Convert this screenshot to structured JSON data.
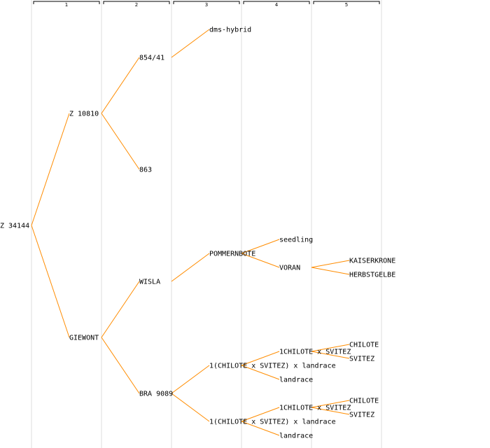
{
  "colors": {
    "edge": "#FF8C00",
    "column_line": "#dcdcdc",
    "text": "#000000"
  },
  "generations": [
    "1",
    "2",
    "3",
    "4",
    "5"
  ],
  "tree": {
    "label": "Z 34144",
    "children": [
      {
        "label": "Z 10810",
        "children": [
          {
            "label": "854/41",
            "children": [
              {
                "label": "dms-hybrid"
              }
            ]
          },
          {
            "label": "863"
          }
        ]
      },
      {
        "label": "GIEWONT",
        "children": [
          {
            "label": "WISLA",
            "children": [
              {
                "label": "POMMERNBOTE",
                "children": [
                  {
                    "label": "seedling"
                  },
                  {
                    "label": "VORAN",
                    "children": [
                      {
                        "label": "KAISERKRONE"
                      },
                      {
                        "label": "HERBSTGELBE"
                      }
                    ]
                  }
                ]
              }
            ]
          },
          {
            "label": "BRA 9089",
            "children": [
              {
                "label": "1(CHILOTE x SVITEZ) x landrace",
                "children": [
                  {
                    "label": "1CHILOTE x SVITEZ",
                    "children": [
                      {
                        "label": "CHILOTE"
                      },
                      {
                        "label": "SVITEZ"
                      }
                    ]
                  },
                  {
                    "label": "landrace"
                  }
                ]
              },
              {
                "label": "1(CHILOTE x SVITEZ) x landrace",
                "children": [
                  {
                    "label": "1CHILOTE x SVITEZ",
                    "children": [
                      {
                        "label": "CHILOTE"
                      },
                      {
                        "label": "SVITEZ"
                      }
                    ]
                  },
                  {
                    "label": "landrace"
                  }
                ]
              }
            ]
          }
        ]
      }
    ]
  }
}
